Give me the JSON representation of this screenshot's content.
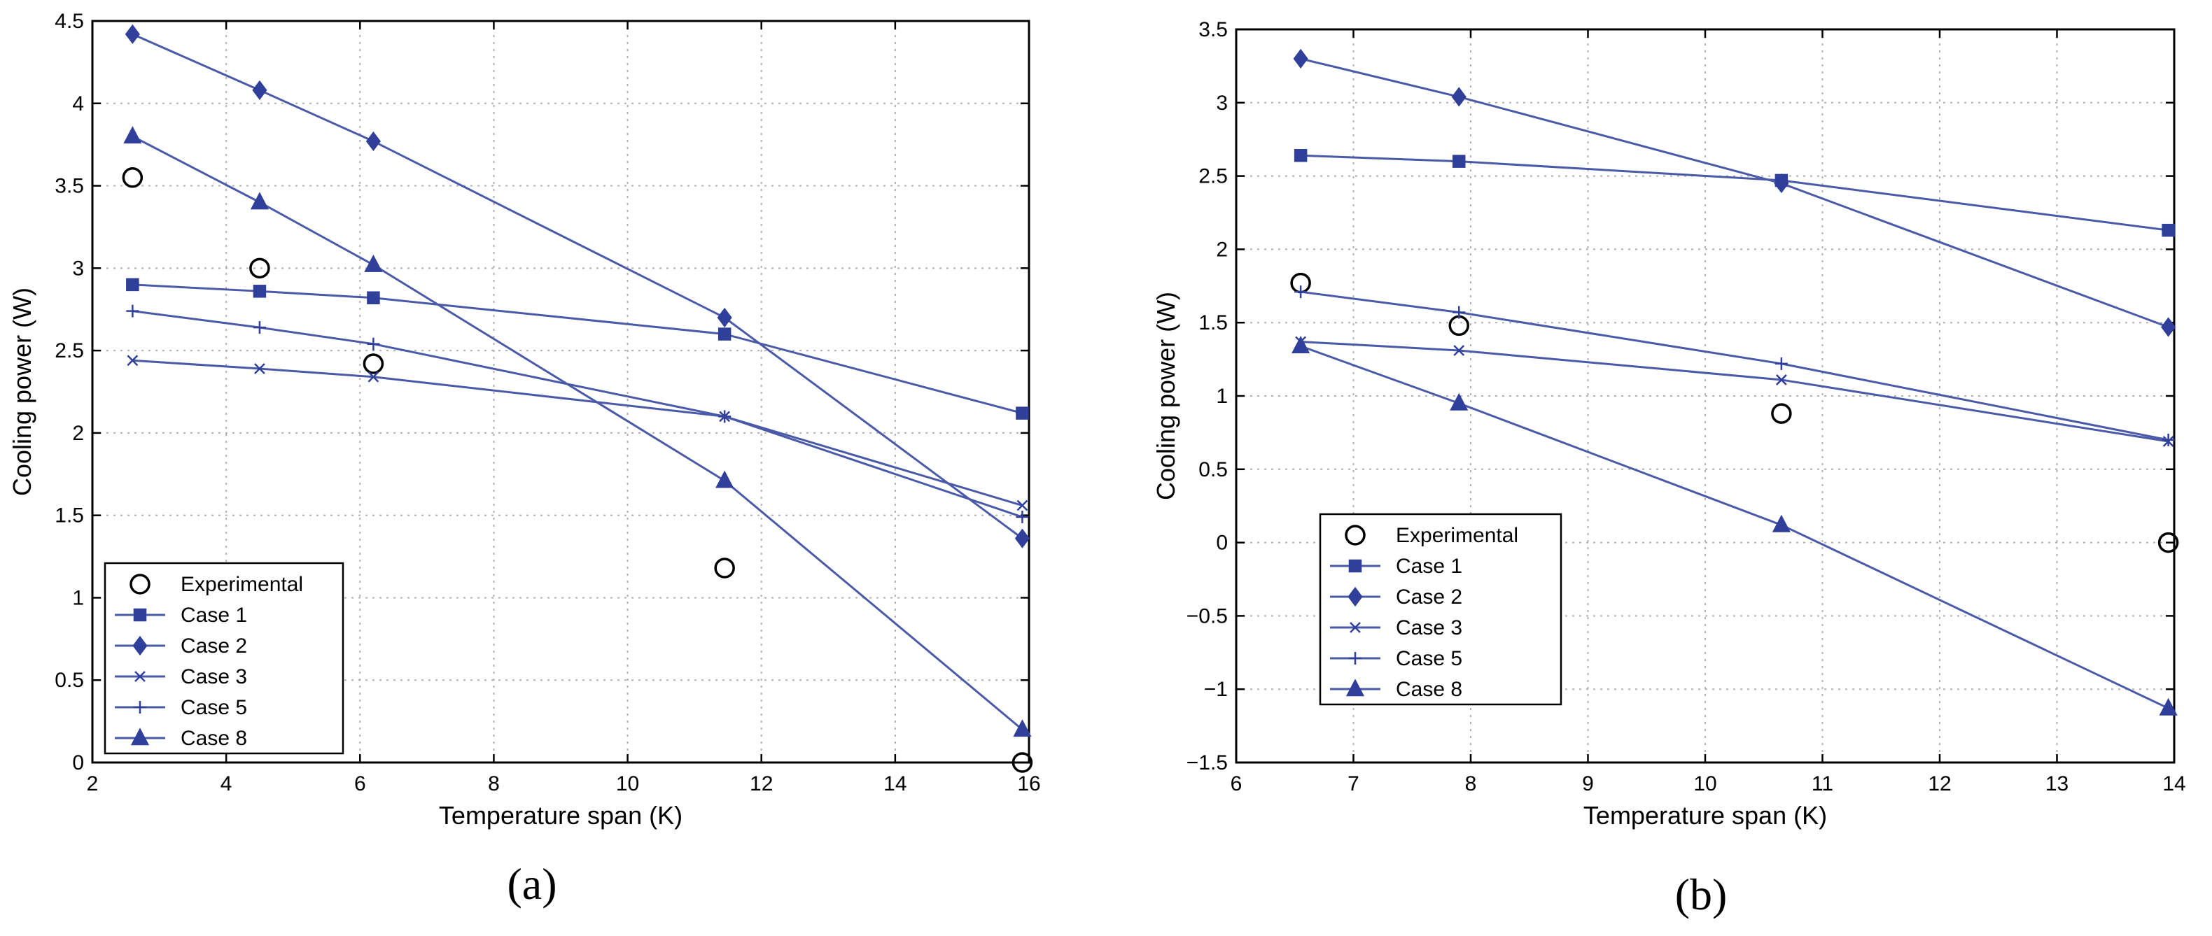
{
  "chart_data": [
    {
      "type": "line",
      "panel_label": "(a)",
      "title": "",
      "xlabel": "Temperature span (K)",
      "ylabel": "Cooling power (W)",
      "xlim": [
        2,
        16
      ],
      "ylim": [
        0,
        4.5
      ],
      "xticks": [
        2,
        4,
        6,
        8,
        10,
        12,
        14,
        16
      ],
      "yticks": [
        0,
        0.5,
        1,
        1.5,
        2,
        2.5,
        3,
        3.5,
        4,
        4.5
      ],
      "xtick_labels": [
        "2",
        "4",
        "6",
        "8",
        "10",
        "12",
        "14",
        "16"
      ],
      "ytick_labels": [
        "0",
        "0.5",
        "1",
        "1.5",
        "2",
        "2.5",
        "3",
        "3.5",
        "4",
        "4.5"
      ],
      "grid": true,
      "legend_position": "bottom-left",
      "series": [
        {
          "name": "Experimental",
          "marker": "circle-open",
          "line": false,
          "x": [
            2.6,
            4.5,
            6.2,
            11.45,
            15.9
          ],
          "y": [
            3.55,
            3.0,
            2.42,
            1.18,
            0.0
          ]
        },
        {
          "name": "Case 1",
          "marker": "square",
          "line": true,
          "x": [
            2.6,
            4.5,
            6.2,
            11.45,
            15.9
          ],
          "y": [
            2.9,
            2.86,
            2.82,
            2.6,
            2.12
          ]
        },
        {
          "name": "Case 2",
          "marker": "diamond",
          "line": true,
          "x": [
            2.6,
            4.5,
            6.2,
            11.45,
            15.9
          ],
          "y": [
            4.42,
            4.08,
            3.77,
            2.7,
            1.36
          ]
        },
        {
          "name": "Case 3",
          "marker": "x",
          "line": true,
          "x": [
            2.6,
            4.5,
            6.2,
            11.45,
            15.9
          ],
          "y": [
            2.44,
            2.39,
            2.34,
            2.1,
            1.56
          ]
        },
        {
          "name": "Case 5",
          "marker": "plus",
          "line": true,
          "x": [
            2.6,
            4.5,
            6.2,
            11.45,
            15.9
          ],
          "y": [
            2.74,
            2.64,
            2.54,
            2.1,
            1.49
          ]
        },
        {
          "name": "Case 8",
          "marker": "triangle",
          "line": true,
          "x": [
            2.6,
            4.5,
            6.2,
            11.45,
            15.9
          ],
          "y": [
            3.8,
            3.4,
            3.02,
            1.71,
            0.2
          ]
        }
      ]
    },
    {
      "type": "line",
      "panel_label": "(b)",
      "title": "",
      "xlabel": "Temperature span (K)",
      "ylabel": "Cooling power (W)",
      "xlim": [
        6,
        14
      ],
      "ylim": [
        -1.5,
        3.5
      ],
      "xticks": [
        6,
        7,
        8,
        9,
        10,
        11,
        12,
        13,
        14
      ],
      "yticks": [
        -1.5,
        -1,
        -0.5,
        0,
        0.5,
        1,
        1.5,
        2,
        2.5,
        3,
        3.5
      ],
      "xtick_labels": [
        "6",
        "7",
        "8",
        "9",
        "10",
        "11",
        "12",
        "13",
        "14"
      ],
      "ytick_labels": [
        "−1.5",
        "−1",
        "−0.5",
        "0",
        "0.5",
        "1",
        "1.5",
        "2",
        "2.5",
        "3",
        "3.5"
      ],
      "grid": true,
      "legend_position": "bottom-left",
      "series": [
        {
          "name": "Experimental",
          "marker": "circle-open",
          "line": false,
          "x": [
            6.55,
            7.9,
            10.65,
            13.95
          ],
          "y": [
            1.77,
            1.48,
            0.88,
            0.0
          ]
        },
        {
          "name": "Case 1",
          "marker": "square",
          "line": true,
          "x": [
            6.55,
            7.9,
            10.65,
            13.95
          ],
          "y": [
            2.64,
            2.6,
            2.47,
            2.13
          ]
        },
        {
          "name": "Case 2",
          "marker": "diamond",
          "line": true,
          "x": [
            6.55,
            7.9,
            10.65,
            13.95
          ],
          "y": [
            3.3,
            3.04,
            2.45,
            1.47
          ]
        },
        {
          "name": "Case 3",
          "marker": "x",
          "line": true,
          "x": [
            6.55,
            7.9,
            10.65,
            13.95
          ],
          "y": [
            1.37,
            1.31,
            1.11,
            0.69
          ]
        },
        {
          "name": "Case 5",
          "marker": "plus",
          "line": true,
          "x": [
            6.55,
            7.9,
            10.65,
            13.95
          ],
          "y": [
            1.71,
            1.57,
            1.22,
            0.7
          ]
        },
        {
          "name": "Case 8",
          "marker": "triangle",
          "line": true,
          "x": [
            6.55,
            7.9,
            10.65,
            13.95
          ],
          "y": [
            1.34,
            0.95,
            0.12,
            -1.13
          ]
        }
      ]
    }
  ],
  "colors": {
    "series": "#4a5aa8",
    "marker": "#2f3f9a",
    "grid": "#b0b0b0",
    "axis": "#000000"
  }
}
